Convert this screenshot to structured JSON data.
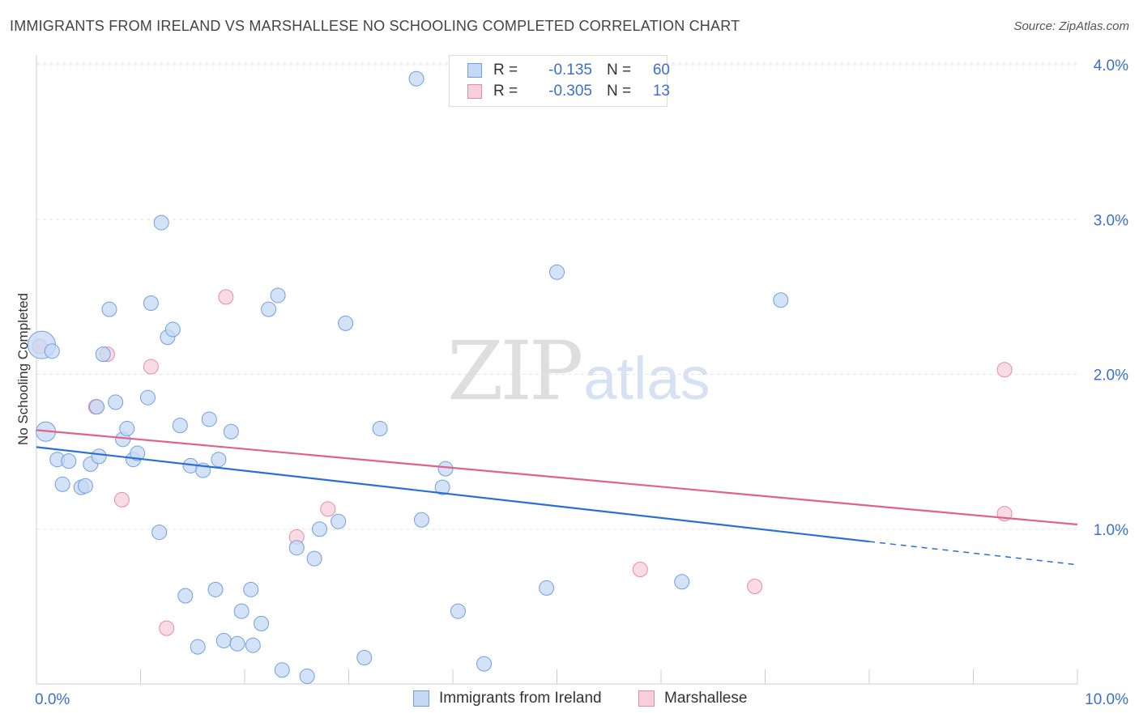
{
  "title": "IMMIGRANTS FROM IRELAND VS MARSHALLESE NO SCHOOLING COMPLETED CORRELATION CHART",
  "source": "Source: ZipAtlas.com",
  "watermark": {
    "zip": "ZIP",
    "atlas": "atlas"
  },
  "legend": {
    "rows": [
      {
        "r_label": "R =",
        "r_value": "-0.135",
        "n_label": "N =",
        "n_value": "60"
      },
      {
        "r_label": "R =",
        "r_value": "-0.305",
        "n_label": "N =",
        "n_value": "13"
      }
    ]
  },
  "chart_data": {
    "type": "scatter",
    "title": "IMMIGRANTS FROM IRELAND VS MARSHALLESE NO SCHOOLING COMPLETED CORRELATION CHART",
    "xlabel": "",
    "ylabel": "No Schooling Completed",
    "xlim": [
      0,
      10
    ],
    "ylim": [
      0,
      4.0
    ],
    "x_tick_labels": [
      "0.0%",
      "10.0%"
    ],
    "y_ticks": [
      1,
      2,
      3,
      4
    ],
    "y_tick_labels": [
      "1.0%",
      "2.0%",
      "3.0%",
      "4.0%"
    ],
    "grid": true,
    "legend_position": "top-center",
    "colors": {
      "ireland": "#6f9fe0",
      "ireland_fill": "#c5d8f4",
      "ireland_line": "#2a6fd6",
      "marshallese": "#e88aa5",
      "marshallese_fill": "#f7cfdb",
      "marshallese_line": "#e0628a"
    },
    "series": [
      {
        "name": "Immigrants from Ireland",
        "points": [
          [
            0.05,
            2.19,
            "big"
          ],
          [
            0.09,
            1.63,
            "mid"
          ],
          [
            0.15,
            2.15
          ],
          [
            0.2,
            1.45
          ],
          [
            0.25,
            1.29
          ],
          [
            0.31,
            1.44
          ],
          [
            0.43,
            1.27
          ],
          [
            0.47,
            1.28
          ],
          [
            0.52,
            1.42
          ],
          [
            0.58,
            1.79
          ],
          [
            0.6,
            1.47
          ],
          [
            0.64,
            2.13
          ],
          [
            0.7,
            2.42
          ],
          [
            0.76,
            1.82
          ],
          [
            0.83,
            1.58
          ],
          [
            0.87,
            1.65
          ],
          [
            0.93,
            1.45
          ],
          [
            0.97,
            1.49
          ],
          [
            1.07,
            1.85
          ],
          [
            1.1,
            2.46
          ],
          [
            1.18,
            0.98
          ],
          [
            1.2,
            2.98
          ],
          [
            1.26,
            2.24
          ],
          [
            1.31,
            2.29
          ],
          [
            1.38,
            1.67
          ],
          [
            1.43,
            0.57
          ],
          [
            1.48,
            1.41
          ],
          [
            1.55,
            0.24
          ],
          [
            1.6,
            1.38
          ],
          [
            1.66,
            1.71
          ],
          [
            1.72,
            0.61
          ],
          [
            1.75,
            1.45
          ],
          [
            1.8,
            0.28
          ],
          [
            1.87,
            1.63
          ],
          [
            1.93,
            0.26
          ],
          [
            1.97,
            0.47
          ],
          [
            2.06,
            0.61
          ],
          [
            2.08,
            0.25
          ],
          [
            2.16,
            0.39
          ],
          [
            2.23,
            2.42
          ],
          [
            2.32,
            2.51
          ],
          [
            2.36,
            0.09
          ],
          [
            2.5,
            0.88
          ],
          [
            2.6,
            0.05
          ],
          [
            2.67,
            0.81
          ],
          [
            2.72,
            1.0
          ],
          [
            2.9,
            1.05
          ],
          [
            2.97,
            2.33
          ],
          [
            3.15,
            0.17
          ],
          [
            3.3,
            1.65
          ],
          [
            3.7,
            1.06
          ],
          [
            3.65,
            3.91
          ],
          [
            3.9,
            1.27
          ],
          [
            3.93,
            1.39
          ],
          [
            4.05,
            0.47
          ],
          [
            4.3,
            0.13
          ],
          [
            4.9,
            0.62
          ],
          [
            5.0,
            2.66
          ],
          [
            6.2,
            0.66
          ],
          [
            7.15,
            2.48
          ]
        ],
        "trend": {
          "x0": 0.0,
          "y0": 1.53,
          "x1": 8.0,
          "y1": 0.92,
          "dash_x1": 10.0,
          "dash_y1": 0.77
        }
      },
      {
        "name": "Marshallese",
        "points": [
          [
            0.03,
            2.18
          ],
          [
            0.57,
            1.79
          ],
          [
            0.68,
            2.13
          ],
          [
            0.82,
            1.19
          ],
          [
            1.1,
            2.05
          ],
          [
            1.25,
            0.36
          ],
          [
            1.82,
            2.5
          ],
          [
            2.5,
            0.95
          ],
          [
            2.8,
            1.13
          ],
          [
            5.8,
            0.74
          ],
          [
            6.9,
            0.63
          ],
          [
            9.3,
            2.03
          ],
          [
            9.3,
            1.1
          ]
        ],
        "trend": {
          "x0": 0.0,
          "y0": 1.64,
          "x1": 10.0,
          "y1": 1.03
        }
      }
    ]
  },
  "bottom_legend": {
    "items": [
      "Immigrants from Ireland",
      "Marshallese"
    ]
  }
}
